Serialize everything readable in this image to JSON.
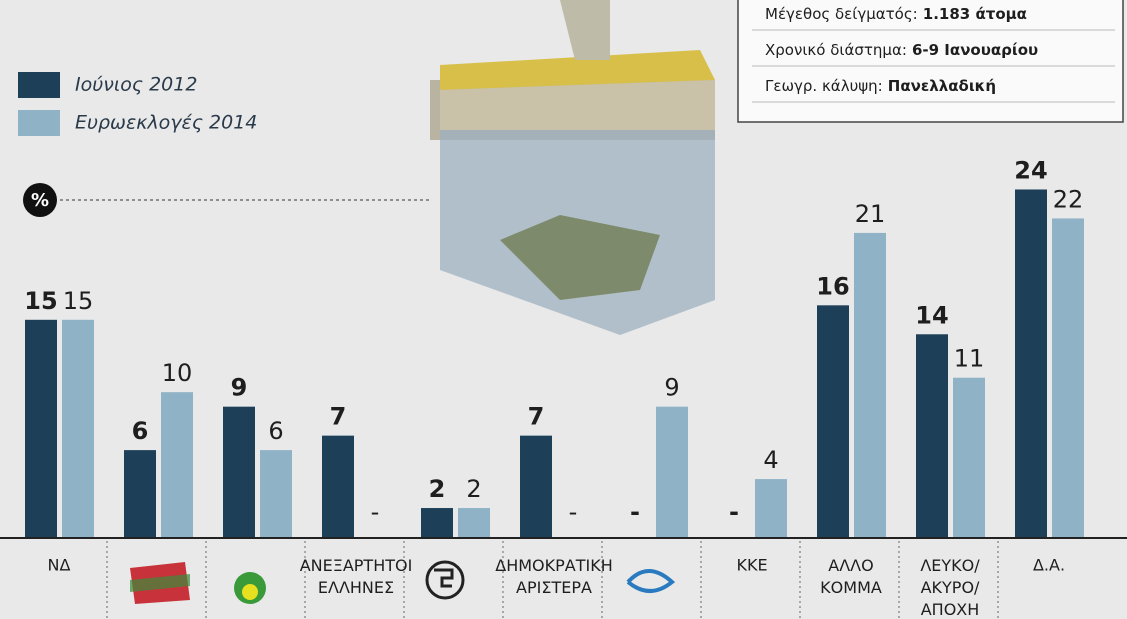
{
  "chart_data": {
    "type": "bar",
    "unit": "%",
    "categories": [
      "ΝΔ",
      null,
      null,
      "ΑΝΕΞΑΡΤΗΤΟΙ ΕΛΛΗΝΕΣ",
      null,
      "ΔΗΜΟΚΡΑΤΙΚΗ ΑΡΙΣΤΕΡΑ",
      null,
      "ΚΚΕ",
      "ΑΛΛΟ ΚΟΜΜΑ",
      "ΛΕΥΚΟ/ ΑΚΥΡΟ/ ΑΠΟΧΗ",
      "Δ.Α."
    ],
    "series": [
      {
        "name": "Ιούνιος 2012",
        "color": "#1d3f58",
        "values": [
          15,
          6,
          9,
          7,
          2,
          7,
          null,
          null,
          16,
          14,
          24
        ],
        "value_labels": [
          "15",
          "6",
          "9",
          "7",
          "2",
          "7",
          "-",
          "-",
          "16",
          "14",
          "24"
        ]
      },
      {
        "name": "Ευρωεκλογές 2014",
        "color": "#8fb2c6",
        "values": [
          15,
          10,
          6,
          null,
          2,
          null,
          9,
          4,
          21,
          11,
          22
        ],
        "value_labels": [
          "15",
          "10",
          "6",
          "-",
          "2",
          "-",
          "9",
          "4",
          "21",
          "11",
          "22"
        ]
      }
    ],
    "ylim": [
      0,
      25
    ]
  },
  "info": [
    {
      "label": "Μέγεθος δείγματός:",
      "value": "1.183 άτομα"
    },
    {
      "label": "Χρονικό διάστημα:",
      "value": "6-9 Ιανουαρίου"
    },
    {
      "label": "Γεωγρ. κάλυψη:",
      "value": "Πανελλαδική"
    }
  ]
}
